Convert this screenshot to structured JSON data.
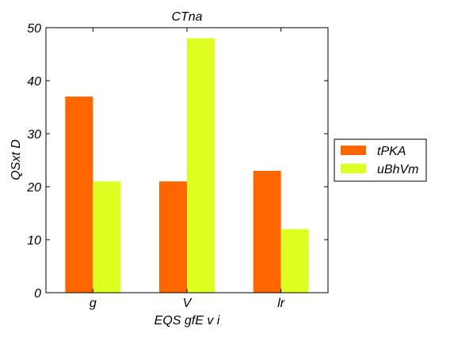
{
  "chart_data": {
    "type": "bar",
    "title": "CTna",
    "xlabel": "EQS gfE v i",
    "ylabel": "QSxt D",
    "categories": [
      "g",
      "V",
      "lr"
    ],
    "series": [
      {
        "name": "tPKA",
        "color": "#ff6600",
        "values": [
          37,
          21,
          23
        ]
      },
      {
        "name": "uBhVm",
        "color": "#ddff22",
        "values": [
          21,
          48,
          12
        ]
      }
    ],
    "ylim": [
      0,
      50
    ],
    "yticks": [
      0,
      10,
      20,
      30,
      40,
      50
    ],
    "grid": false,
    "legend": "right"
  }
}
